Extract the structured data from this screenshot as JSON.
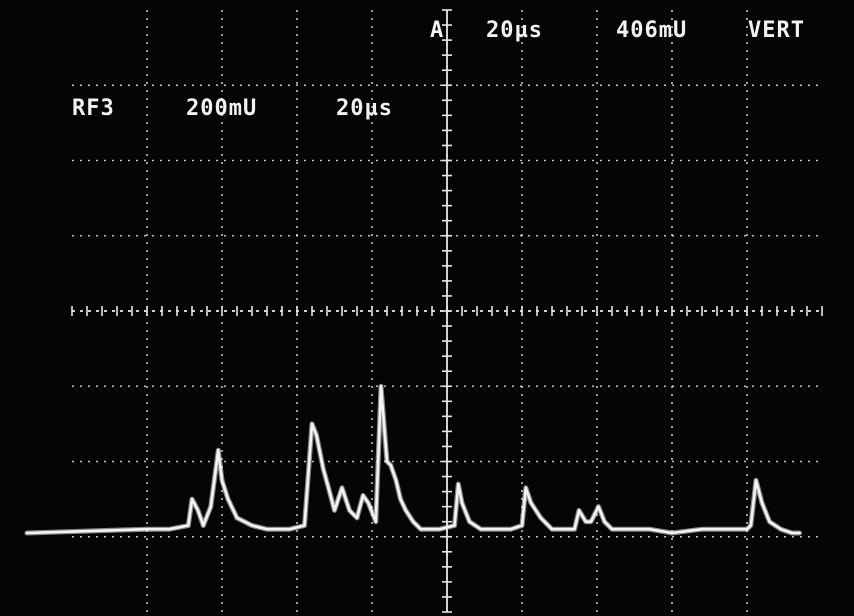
{
  "top_readout": {
    "channel": "A",
    "timebase": "20µs",
    "scale": "406mU",
    "mode": "VERT"
  },
  "channel_readout": {
    "label": "RF3",
    "volts_per_div": "200mU",
    "time_per_div": "20µs"
  },
  "colors": {
    "background": "#050505",
    "trace": "#f4f4f4",
    "graticule": "#e6e6e6"
  },
  "chart_data": {
    "type": "line",
    "title": "",
    "xlabel": "",
    "ylabel": "",
    "grid": true,
    "x_divisions": 10,
    "y_divisions": 8,
    "xlim": [
      0,
      10
    ],
    "ylim": [
      0,
      8
    ],
    "series": [
      {
        "x": [
          -0.6,
          1.0,
          1.3,
          1.55,
          1.6,
          1.68,
          1.75,
          1.85,
          1.95,
          2.0,
          2.08,
          2.2,
          2.4,
          2.6,
          2.9,
          3.1,
          3.2,
          3.26,
          3.35,
          3.42,
          3.5,
          3.6,
          3.7,
          3.8,
          3.88,
          3.95,
          4.05,
          4.12,
          4.2,
          4.25,
          4.32,
          4.38,
          4.45,
          4.55,
          4.65,
          4.75,
          4.9,
          5.1,
          5.15,
          5.2,
          5.3,
          5.45,
          5.65,
          5.85,
          6.0,
          6.05,
          6.12,
          6.25,
          6.4,
          6.6,
          6.7,
          6.76,
          6.85,
          6.92,
          7.02,
          7.1,
          7.2,
          7.4,
          7.7,
          8.0,
          8.4,
          8.6,
          9.0,
          9.05,
          9.12,
          9.2,
          9.3,
          9.45,
          9.6,
          9.7
        ],
        "y": [
          1.05,
          1.1,
          1.1,
          1.15,
          1.5,
          1.35,
          1.15,
          1.4,
          2.15,
          1.75,
          1.5,
          1.25,
          1.15,
          1.1,
          1.1,
          1.15,
          2.5,
          2.35,
          1.9,
          1.65,
          1.35,
          1.65,
          1.35,
          1.25,
          1.55,
          1.45,
          1.2,
          3.0,
          2.0,
          1.95,
          1.75,
          1.5,
          1.35,
          1.2,
          1.1,
          1.1,
          1.1,
          1.15,
          1.7,
          1.45,
          1.2,
          1.1,
          1.1,
          1.1,
          1.15,
          1.65,
          1.45,
          1.25,
          1.1,
          1.1,
          1.1,
          1.35,
          1.2,
          1.2,
          1.4,
          1.2,
          1.1,
          1.1,
          1.1,
          1.05,
          1.1,
          1.1,
          1.1,
          1.15,
          1.75,
          1.45,
          1.2,
          1.1,
          1.05,
          1.05
        ]
      }
    ]
  }
}
